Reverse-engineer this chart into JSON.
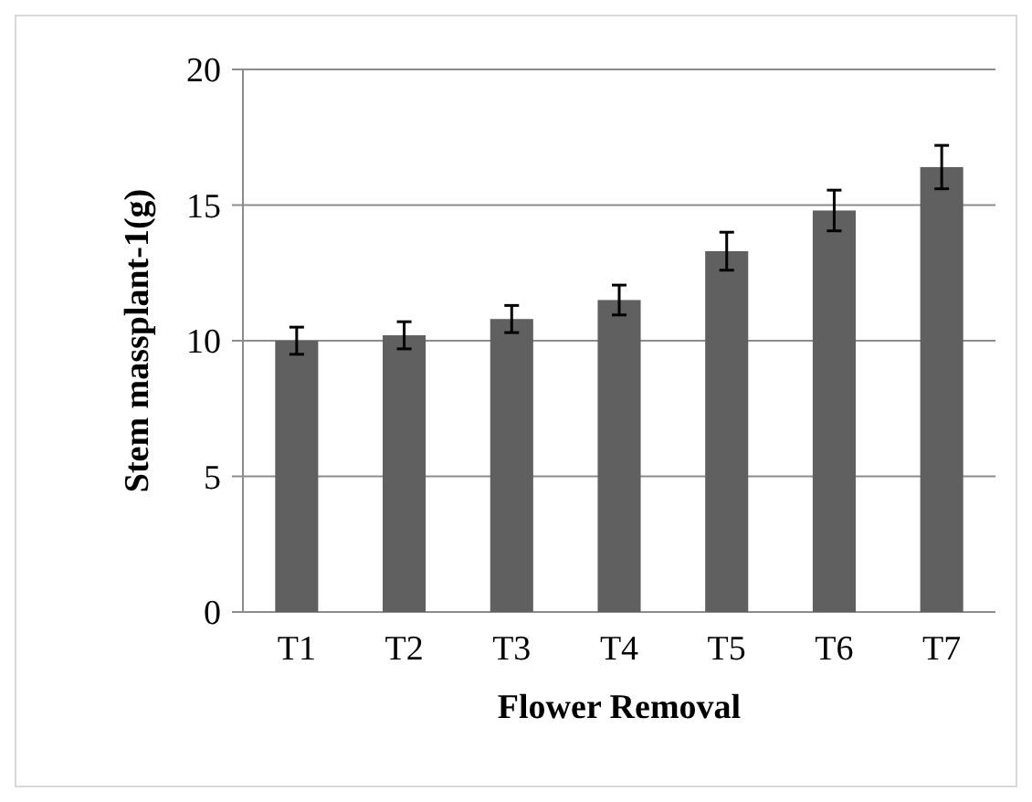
{
  "chart_data": {
    "type": "bar",
    "xlabel": "Flower Removal",
    "ylabel": "Stem massplant-1(g)",
    "categories": [
      "T1",
      "T2",
      "T3",
      "T4",
      "T5",
      "T6",
      "T7"
    ],
    "values": [
      10.0,
      10.2,
      10.8,
      11.5,
      13.3,
      14.8,
      16.4
    ],
    "errors": [
      0.5,
      0.5,
      0.5,
      0.55,
      0.7,
      0.75,
      0.8
    ],
    "color": "#606060",
    "ylim": [
      0,
      20
    ],
    "yticks": [
      0,
      5,
      10,
      15,
      20
    ],
    "grid": "y"
  }
}
